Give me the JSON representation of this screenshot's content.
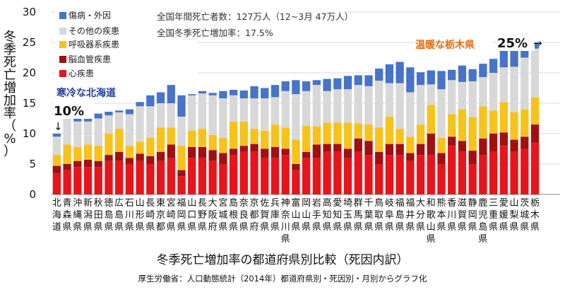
{
  "chart_data": {
    "type": "bar",
    "stacked": true,
    "title": "冬季死亡増加率の都道府県別比較（死因内訳）",
    "source": "厚生労働省：人口動態統計（2014年）都道府県別・死因別・月別からグラフ化",
    "ylabel": "冬季死亡増加率（%）",
    "ylabel_chars": [
      "冬",
      "季",
      "死",
      "亡",
      "増",
      "加",
      "率",
      "（",
      "%",
      "）"
    ],
    "yticks": [
      0,
      5,
      10,
      15,
      20,
      25,
      30
    ],
    "ylim": [
      0,
      30
    ],
    "notes": [
      "全国年間死亡者数：127万人（12~3月 47万人）",
      "全国冬季死亡増加率：17.5%"
    ],
    "annotations": {
      "cold_label": "寒冷な北海道",
      "cold_value": "10%",
      "cold_arrow": "↓",
      "warm_label": "温暖な栃木県",
      "warm_value": "25%",
      "warm_arrow": "→"
    },
    "categories": [
      "北海道",
      "青森県",
      "沖縄県",
      "新潟県",
      "秋田県",
      "徳島県",
      "広島県",
      "石川県",
      "山形県",
      "長崎県",
      "東京都",
      "宮崎県",
      "福岡県",
      "山口県",
      "長野県",
      "大阪府",
      "宮城県",
      "島根県",
      "奈良県",
      "京都府",
      "佐賀県",
      "兵庫県",
      "神奈川県",
      "富山県",
      "岡山県",
      "岩手県",
      "高知県",
      "愛知県",
      "埼玉県",
      "群馬県",
      "千葉県",
      "鳥取県",
      "岐阜県",
      "福島県",
      "福井県",
      "大分県",
      "和歌山県",
      "熊本県",
      "香川県",
      "滋賀県",
      "静岡県",
      "鹿児島県",
      "三重県",
      "愛媛県",
      "山梨県",
      "茨城県",
      "栃木県"
    ],
    "series": [
      {
        "name": "心疾患",
        "color": "#e8141b",
        "values": [
          3.5,
          4.0,
          4.5,
          4.5,
          4.5,
          5.5,
          5.5,
          5.0,
          5.5,
          5.0,
          5.5,
          6.0,
          3.0,
          6.0,
          6.0,
          5.5,
          5.0,
          6.5,
          7.0,
          7.0,
          6.0,
          6.0,
          6.5,
          4.0,
          6.0,
          6.0,
          7.0,
          7.0,
          6.0,
          7.0,
          6.5,
          5.0,
          6.5,
          6.5,
          5.5,
          6.5,
          6.5,
          5.0,
          8.0,
          7.0,
          5.0,
          6.5,
          7.0,
          8.0,
          7.0,
          7.5,
          8.5
        ]
      },
      {
        "name": "脳血管疾患",
        "color": "#a01010",
        "values": [
          1.2,
          1.0,
          1.0,
          1.2,
          1.0,
          1.0,
          1.5,
          1.0,
          1.2,
          1.3,
          1.5,
          2.2,
          1.0,
          1.8,
          1.8,
          1.8,
          1.8,
          1.0,
          1.0,
          1.3,
          1.5,
          1.8,
          1.0,
          1.0,
          1.0,
          2.2,
          1.3,
          1.3,
          1.5,
          2.2,
          2.3,
          2.0,
          1.8,
          1.8,
          1.3,
          1.8,
          3.5,
          1.8,
          1.5,
          1.8,
          2.2,
          2.7,
          3.0,
          2.2,
          2.0,
          2.0,
          3.0
        ]
      },
      {
        "name": "呼吸器系疾患",
        "color": "#f7c21b",
        "values": [
          1.8,
          3.2,
          2.3,
          2.5,
          2.5,
          3.5,
          3.8,
          2.0,
          2.0,
          3.0,
          4.0,
          2.8,
          4.0,
          2.7,
          3.0,
          2.5,
          2.5,
          4.5,
          4.0,
          2.5,
          3.0,
          3.7,
          3.5,
          4.0,
          4.3,
          3.0,
          3.5,
          3.5,
          4.3,
          2.5,
          2.7,
          4.0,
          4.5,
          2.5,
          2.7,
          3.2,
          4.7,
          2.5,
          3.7,
          5.2,
          5.5,
          5.3,
          3.8,
          5.0,
          4.5,
          4.5,
          4.5
        ]
      },
      {
        "name": "その他の疾患",
        "color": "#d8d8d8",
        "values": [
          3.0,
          4.3,
          4.2,
          3.8,
          4.5,
          3.0,
          2.7,
          5.2,
          5.8,
          5.2,
          4.0,
          4.0,
          4.8,
          5.8,
          5.8,
          6.5,
          6.5,
          4.3,
          3.8,
          5.0,
          5.3,
          4.5,
          6.0,
          7.5,
          5.7,
          6.8,
          5.2,
          5.5,
          5.5,
          6.3,
          6.3,
          7.7,
          5.5,
          7.5,
          7.3,
          6.5,
          3.4,
          8.0,
          5.6,
          4.5,
          5.9,
          4.8,
          6.2,
          5.7,
          7.5,
          8.5,
          8.0
        ]
      },
      {
        "name": "傷病・外因",
        "color": "#4774c8",
        "values": [
          0.5,
          0.5,
          0.5,
          0.8,
          0.8,
          0.6,
          0.3,
          0.8,
          0.7,
          1.8,
          1.8,
          3.0,
          3.5,
          0.2,
          0.4,
          0.4,
          1.2,
          0.9,
          1.3,
          2.0,
          1.7,
          2.0,
          1.6,
          2.3,
          1.6,
          0.8,
          2.0,
          1.8,
          2.2,
          1.6,
          1.8,
          2.0,
          3.1,
          3.5,
          4.1,
          2.1,
          2.3,
          3.0,
          1.7,
          2.7,
          2.0,
          2.2,
          2.3,
          2.8,
          2.6,
          1.5,
          1.0
        ]
      }
    ]
  }
}
